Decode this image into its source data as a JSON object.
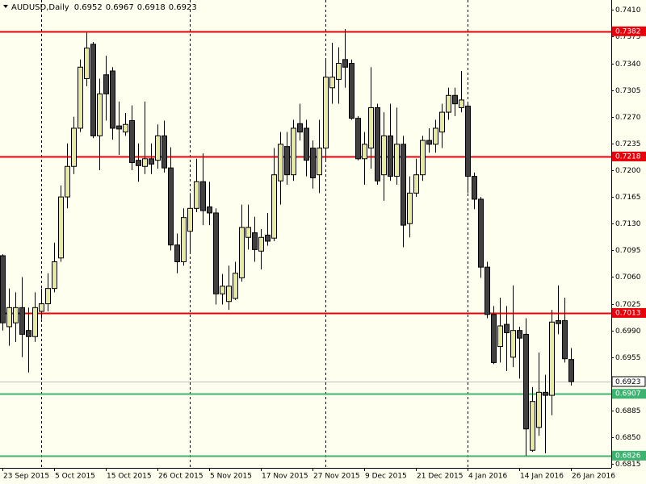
{
  "chart_data": {
    "type": "candlestick",
    "symbol": "AUDUSD,Daily",
    "categories": [
      "23 Sep 2015",
      null,
      null,
      null,
      null,
      null,
      null,
      null,
      "5 Oct 2015",
      null,
      null,
      null,
      null,
      null,
      null,
      null,
      "15 Oct 2015",
      null,
      null,
      null,
      null,
      null,
      null,
      null,
      "26 Oct 2015",
      null,
      null,
      null,
      null,
      null,
      null,
      null,
      "5 Nov 2015",
      null,
      null,
      null,
      null,
      null,
      null,
      null,
      "17 Nov 2015",
      null,
      null,
      null,
      null,
      null,
      null,
      null,
      "27 Nov 2015",
      null,
      null,
      null,
      null,
      null,
      null,
      null,
      "9 Dec 2015",
      null,
      null,
      null,
      null,
      null,
      null,
      null,
      "21 Dec 2015",
      null,
      null,
      null,
      null,
      null,
      null,
      null,
      "4 Jan 2016",
      null,
      null,
      null,
      null,
      null,
      null,
      null,
      "14 Jan 2016",
      null,
      null,
      null,
      null,
      null,
      null,
      null,
      "26 Jan 2016"
    ],
    "open": [
      0.7088,
      0.6995,
      0.7,
      0.702,
      0.699,
      0.6982,
      0.7015,
      0.7025,
      0.7045,
      0.7085,
      0.7165,
      0.7205,
      0.7255,
      0.732,
      0.7365,
      0.7245,
      0.7325,
      0.733,
      0.7258,
      0.725,
      0.7265,
      0.7213,
      0.7205,
      0.7215,
      0.7213,
      0.7245,
      0.7203,
      0.7102,
      0.708,
      0.712,
      0.715,
      0.7185,
      0.7152,
      0.7144,
      0.7038,
      0.7028,
      0.7032,
      0.7059,
      0.7112,
      0.7118,
      0.7094,
      0.7115,
      0.7111,
      0.7186,
      0.7231,
      0.7194,
      0.7261,
      0.7255,
      0.7229,
      0.7194,
      0.7229,
      0.7308,
      0.7319,
      0.7345,
      0.734,
      0.7268,
      0.7215,
      0.7229,
      0.7282,
      0.7194,
      0.7245,
      0.7192,
      0.7234,
      0.713,
      0.717,
      0.7194,
      0.7239,
      0.7234,
      0.725,
      0.7276,
      0.7298,
      0.7282,
      0.7284,
      0.7192,
      0.7162,
      0.7073,
      0.7011,
      0.6969,
      0.6998,
      0.6955,
      0.699,
      0.6985,
      0.6833,
      0.6863,
      0.6909,
      0.6905,
      0.7003,
      0.7003,
      0.6952
    ],
    "high": [
      0.709,
      0.7045,
      0.704,
      0.706,
      0.702,
      0.704,
      0.7045,
      0.7065,
      0.7105,
      0.718,
      0.7235,
      0.727,
      0.7345,
      0.738,
      0.7368,
      0.732,
      0.735,
      0.7335,
      0.729,
      0.7275,
      0.7285,
      0.7235,
      0.729,
      0.7235,
      0.726,
      0.7265,
      0.723,
      0.7117,
      0.715,
      0.717,
      0.7215,
      0.7222,
      0.7185,
      0.715,
      0.7064,
      0.7075,
      0.708,
      0.7155,
      0.7155,
      0.7139,
      0.7123,
      0.7144,
      0.7229,
      0.725,
      0.725,
      0.7266,
      0.7287,
      0.7266,
      0.7239,
      0.7266,
      0.7345,
      0.7367,
      0.7361,
      0.7385,
      0.7345,
      0.7271,
      0.725,
      0.7335,
      0.7287,
      0.7276,
      0.7287,
      0.7282,
      0.7245,
      0.7192,
      0.7215,
      0.7245,
      0.7255,
      0.7266,
      0.7287,
      0.7308,
      0.7308,
      0.733,
      0.7287,
      0.7197,
      0.7165,
      0.708,
      0.7022,
      0.7033,
      0.7022,
      0.7049,
      0.6995,
      0.7006,
      0.6916,
      0.6961,
      0.6932,
      0.7017,
      0.7049,
      0.7033,
      0.6967
    ],
    "low": [
      0.699,
      0.697,
      0.6975,
      0.6955,
      0.6935,
      0.6975,
      0.7005,
      0.7015,
      0.704,
      0.708,
      0.715,
      0.7195,
      0.725,
      0.731,
      0.7242,
      0.72,
      0.7265,
      0.724,
      0.722,
      0.7245,
      0.72,
      0.7185,
      0.7195,
      0.7195,
      0.7202,
      0.7197,
      0.7095,
      0.7065,
      0.7075,
      0.709,
      0.7145,
      0.7128,
      0.7128,
      0.7024,
      0.7024,
      0.7017,
      0.703,
      0.7054,
      0.7096,
      0.708,
      0.707,
      0.7101,
      0.7107,
      0.7155,
      0.7181,
      0.7186,
      0.7239,
      0.7192,
      0.7176,
      0.717,
      0.7213,
      0.7287,
      0.7287,
      0.7308,
      0.7266,
      0.7213,
      0.7181,
      0.7202,
      0.7181,
      0.716,
      0.7186,
      0.7181,
      0.7099,
      0.7112,
      0.7165,
      0.7186,
      0.7223,
      0.7223,
      0.7229,
      0.7266,
      0.7271,
      0.7276,
      0.717,
      0.7149,
      0.7059,
      0.7006,
      0.6946,
      0.6948,
      0.6937,
      0.6942,
      0.6927,
      0.6826,
      0.6831,
      0.6852,
      0.6829,
      0.6879,
      0.6985,
      0.6948,
      0.6918
    ],
    "close": [
      0.7,
      0.702,
      0.702,
      0.6985,
      0.6982,
      0.702,
      0.7025,
      0.7045,
      0.708,
      0.7165,
      0.7205,
      0.7255,
      0.7335,
      0.736,
      0.7245,
      0.73,
      0.73,
      0.7255,
      0.7254,
      0.726,
      0.721,
      0.7206,
      0.7215,
      0.7208,
      0.7245,
      0.7203,
      0.7102,
      0.708,
      0.7138,
      0.715,
      0.7185,
      0.7147,
      0.7144,
      0.7038,
      0.7048,
      0.7048,
      0.7065,
      0.7125,
      0.7125,
      0.7096,
      0.7112,
      0.7107,
      0.7194,
      0.7234,
      0.7194,
      0.7255,
      0.725,
      0.7213,
      0.719,
      0.7229,
      0.7322,
      0.7322,
      0.734,
      0.7335,
      0.7268,
      0.7215,
      0.7234,
      0.7282,
      0.7186,
      0.7245,
      0.7192,
      0.7234,
      0.7128,
      0.717,
      0.7194,
      0.7239,
      0.7234,
      0.7255,
      0.7276,
      0.7298,
      0.7287,
      0.7292,
      0.7192,
      0.7162,
      0.7073,
      0.7011,
      0.6948,
      0.6996,
      0.6987,
      0.699,
      0.698,
      0.6861,
      0.6897,
      0.6909,
      0.6905,
      0.7001,
      0.6999,
      0.6953,
      0.6923
    ],
    "up_color": "#e8e8a0",
    "down_color": "#404040",
    "ylim": [
      0.681,
      0.7423
    ],
    "yticks": [
      {
        "value": 0.741,
        "label": "0.7410"
      },
      0.7375,
      {
        "value": 0.734,
        "label": "0.7340"
      },
      0.7305,
      {
        "value": 0.727,
        "label": "0.7270"
      },
      0.7235,
      {
        "value": 0.72,
        "label": "0.7200"
      },
      0.7165,
      {
        "value": 0.713,
        "label": "0.7130"
      },
      0.7095,
      {
        "value": 0.706,
        "label": "0.7060"
      },
      0.7025,
      {
        "value": 0.699,
        "label": "0.6990"
      },
      0.6955,
      0.6885,
      {
        "value": 0.685,
        "label": "0.6850"
      },
      0.6815
    ],
    "levels": [
      {
        "value": 0.7382,
        "color": "#e8000b"
      },
      {
        "value": 0.7218,
        "color": "#e8000b"
      },
      {
        "value": 0.7013,
        "color": "#e8000b"
      },
      {
        "value": 0.6907,
        "color": "#3cb371"
      },
      {
        "value": 0.6826,
        "color": "#3cb371"
      }
    ]
  }
}
